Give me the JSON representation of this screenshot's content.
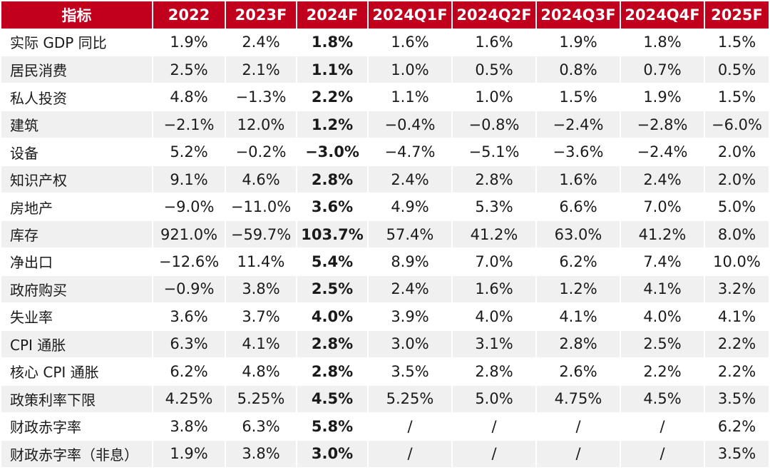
{
  "table": {
    "headers": [
      "指标",
      "2022",
      "2023F",
      "2024F",
      "2024Q1F",
      "2024Q2F",
      "2024Q3F",
      "2024Q4F",
      "2025F"
    ],
    "rows": [
      [
        "实际 GDP 同比",
        "1.9%",
        "2.4%",
        "1.8%",
        "1.6%",
        "1.6%",
        "1.9%",
        "1.8%",
        "1.5%"
      ],
      [
        "居民消费",
        "2.5%",
        "2.1%",
        "1.1%",
        "1.0%",
        "0.5%",
        "0.8%",
        "0.7%",
        "0.5%"
      ],
      [
        "私人投资",
        "4.8%",
        "−1.3%",
        "2.2%",
        "1.1%",
        "1.0%",
        "1.5%",
        "1.9%",
        "1.5%"
      ],
      [
        "建筑",
        "−2.1%",
        "12.0%",
        "1.2%",
        "−0.4%",
        "−0.8%",
        "−2.4%",
        "−2.8%",
        "−6.0%"
      ],
      [
        "设备",
        "5.2%",
        "−0.2%",
        "−3.0%",
        "−4.7%",
        "−5.1%",
        "−3.6%",
        "−2.4%",
        "2.0%"
      ],
      [
        "知识产权",
        "9.1%",
        "4.6%",
        "2.8%",
        "2.4%",
        "2.8%",
        "1.6%",
        "2.4%",
        "2.0%"
      ],
      [
        "房地产",
        "−9.0%",
        "−11.0%",
        "3.6%",
        "4.9%",
        "5.3%",
        "6.6%",
        "7.0%",
        "5.0%"
      ],
      [
        "库存",
        "921.0%",
        "−59.7%",
        "103.7%",
        "57.4%",
        "41.2%",
        "63.0%",
        "41.2%",
        "8.0%"
      ],
      [
        "净出口",
        "−12.6%",
        "11.4%",
        "5.4%",
        "8.9%",
        "7.0%",
        "6.2%",
        "7.4%",
        "10.0%"
      ],
      [
        "政府购买",
        "−0.9%",
        "3.8%",
        "2.5%",
        "2.4%",
        "1.6%",
        "1.2%",
        "4.1%",
        "3.2%"
      ],
      [
        "失业率",
        "3.6%",
        "3.7%",
        "4.0%",
        "3.9%",
        "4.0%",
        "4.1%",
        "4.0%",
        "4.1%"
      ],
      [
        "CPI 通胀",
        "6.3%",
        "4.1%",
        "2.8%",
        "3.0%",
        "3.1%",
        "2.8%",
        "2.5%",
        "2.2%"
      ],
      [
        "核心 CPI 通胀",
        "6.2%",
        "4.8%",
        "2.8%",
        "3.5%",
        "2.8%",
        "2.6%",
        "2.2%",
        "2.2%"
      ],
      [
        "政策利率下限",
        "4.25%",
        "5.25%",
        "4.5%",
        "5.25%",
        "5.0%",
        "4.75%",
        "4.5%",
        "3.5%"
      ],
      [
        "财政赤字率",
        "3.8%",
        "6.3%",
        "5.8%",
        "/",
        "/",
        "/",
        "/",
        "6.2%"
      ],
      [
        "财政赤字率（非息）",
        "1.9%",
        "3.8%",
        "3.0%",
        "/",
        "/",
        "/",
        "/",
        "3.5%"
      ]
    ]
  },
  "colors": {
    "header_bg": "#c0001c",
    "header_text": "#ffffff",
    "stripe": "#f0f0f0"
  }
}
